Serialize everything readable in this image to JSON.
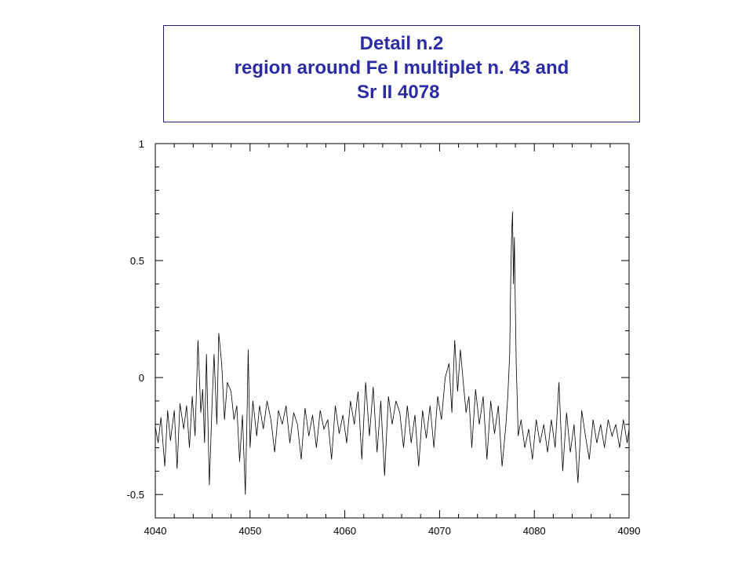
{
  "title": {
    "line1": "Detail n.2",
    "line2": "region around Fe I multiplet n. 43 and",
    "line3": "Sr II 4078"
  },
  "colors": {
    "title_text": "#2b2ba6",
    "title_border": "#1f1f7a",
    "trace": "#000000",
    "axes": "#000000"
  },
  "chart_data": {
    "type": "line",
    "title": "Detail n.2 region around Fe I multiplet n. 43 and Sr II 4078",
    "xlabel": "",
    "ylabel": "",
    "xlim": [
      4040,
      4090
    ],
    "ylim": [
      -0.6,
      1.0
    ],
    "grid": false,
    "legend": "none",
    "x_ticks": [
      4040,
      4050,
      4060,
      4070,
      4080,
      4090
    ],
    "x_tick_labels": [
      "4040",
      "4050",
      "4060",
      "4070",
      "4080",
      "4090"
    ],
    "y_ticks": [
      -0.5,
      0,
      0.5,
      1
    ],
    "y_tick_labels": [
      "-0.5",
      "0",
      "0.5",
      "1"
    ],
    "series": [
      {
        "x": [
          4040.0,
          4040.3,
          4040.6,
          4041.0,
          4041.3,
          4041.6,
          4042.0,
          4042.3,
          4042.6,
          4043.0,
          4043.3,
          4043.6,
          4043.9,
          4044.2,
          4044.5,
          4044.8,
          4045.0,
          4045.2,
          4045.4,
          4045.7,
          4046.0,
          4046.2,
          4046.5,
          4046.7,
          4047.0,
          4047.3,
          4047.6,
          4048.0,
          4048.3,
          4048.6,
          4048.9,
          4049.2,
          4049.5,
          4049.7,
          4049.8,
          4050.0,
          4050.3,
          4050.7,
          4051.0,
          4051.4,
          4051.8,
          4052.2,
          4052.6,
          4053.0,
          4053.4,
          4053.8,
          4054.2,
          4054.6,
          4055.0,
          4055.4,
          4055.8,
          4056.2,
          4056.6,
          4057.0,
          4057.4,
          4057.8,
          4058.2,
          4058.6,
          4059.0,
          4059.4,
          4059.8,
          4060.2,
          4060.6,
          4061.0,
          4061.4,
          4061.8,
          4062.2,
          4062.6,
          4063.0,
          4063.4,
          4063.8,
          4064.2,
          4064.6,
          4065.0,
          4065.4,
          4065.8,
          4066.2,
          4066.6,
          4067.0,
          4067.4,
          4067.8,
          4068.2,
          4068.6,
          4069.0,
          4069.4,
          4069.8,
          4070.2,
          4070.6,
          4071.0,
          4071.3,
          4071.6,
          4071.9,
          4072.2,
          4072.5,
          4072.8,
          4073.1,
          4073.4,
          4073.8,
          4074.2,
          4074.6,
          4075.0,
          4075.4,
          4075.8,
          4076.2,
          4076.6,
          4077.0,
          4077.2,
          4077.4,
          4077.5,
          4077.6,
          4077.7,
          4077.8,
          4077.9,
          4078.0,
          4078.1,
          4078.3,
          4078.6,
          4079.0,
          4079.4,
          4079.8,
          4080.2,
          4080.6,
          4081.0,
          4081.4,
          4081.8,
          4082.2,
          4082.6,
          4083.0,
          4083.4,
          4083.8,
          4084.2,
          4084.6,
          4085.0,
          4085.4,
          4085.8,
          4086.2,
          4086.6,
          4087.0,
          4087.4,
          4087.8,
          4088.2,
          4088.6,
          4089.0,
          4089.4,
          4089.8,
          4090.0
        ],
        "y": [
          -0.21,
          -0.28,
          -0.17,
          -0.38,
          -0.14,
          -0.27,
          -0.14,
          -0.39,
          -0.11,
          -0.22,
          -0.12,
          -0.3,
          -0.08,
          -0.25,
          0.16,
          -0.15,
          -0.05,
          -0.28,
          0.1,
          -0.46,
          -0.1,
          0.1,
          -0.2,
          0.19,
          0.06,
          -0.18,
          -0.02,
          -0.06,
          -0.18,
          -0.12,
          -0.36,
          -0.16,
          -0.5,
          -0.12,
          0.12,
          -0.3,
          -0.1,
          -0.25,
          -0.12,
          -0.22,
          -0.1,
          -0.18,
          -0.32,
          -0.14,
          -0.2,
          -0.12,
          -0.28,
          -0.15,
          -0.2,
          -0.35,
          -0.13,
          -0.25,
          -0.16,
          -0.3,
          -0.14,
          -0.22,
          -0.18,
          -0.35,
          -0.12,
          -0.24,
          -0.16,
          -0.28,
          -0.1,
          -0.2,
          -0.06,
          -0.35,
          -0.02,
          -0.25,
          -0.04,
          -0.32,
          -0.1,
          -0.42,
          -0.08,
          -0.2,
          -0.1,
          -0.15,
          -0.3,
          -0.12,
          -0.28,
          -0.16,
          -0.38,
          -0.14,
          -0.26,
          -0.12,
          -0.3,
          -0.08,
          -0.18,
          0.0,
          0.06,
          -0.15,
          0.16,
          -0.06,
          0.12,
          -0.02,
          -0.15,
          -0.08,
          -0.3,
          -0.05,
          -0.2,
          -0.08,
          -0.35,
          -0.1,
          -0.24,
          -0.12,
          -0.38,
          -0.2,
          -0.08,
          0.1,
          0.4,
          0.6,
          0.71,
          0.4,
          0.6,
          0.3,
          0.05,
          -0.25,
          -0.18,
          -0.3,
          -0.22,
          -0.35,
          -0.18,
          -0.28,
          -0.2,
          -0.32,
          -0.18,
          -0.3,
          -0.02,
          -0.4,
          -0.15,
          -0.32,
          -0.2,
          -0.45,
          -0.14,
          -0.25,
          -0.35,
          -0.18,
          -0.28,
          -0.2,
          -0.3,
          -0.18,
          -0.25,
          -0.2,
          -0.3,
          -0.18,
          -0.28,
          -0.22
        ]
      }
    ]
  }
}
